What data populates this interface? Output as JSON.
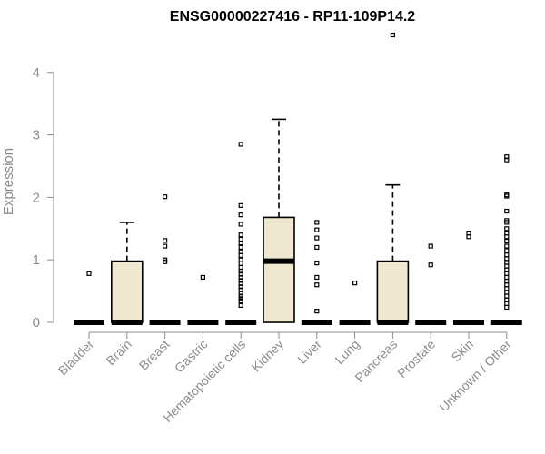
{
  "chart_data": {
    "type": "box",
    "title": "ENSG00000227416 - RP11-109P14.2",
    "ylabel": "Expression",
    "xlabel": "",
    "ylim": [
      0,
      4.6
    ],
    "yticks": [
      0,
      1,
      2,
      3,
      4
    ],
    "grid": false,
    "categories": [
      "Bladder",
      "Brain",
      "Breast",
      "Gastric",
      "Hematopoietic cells",
      "Kidney",
      "Liver",
      "Lung",
      "Pancreas",
      "Prostate",
      "Skin",
      "Unknown / Other"
    ],
    "boxes": [
      {
        "category": "Bladder",
        "q1": 0,
        "median": 0,
        "q3": 0,
        "whisker_low": 0,
        "whisker_high": 0,
        "outliers": [
          0.78
        ]
      },
      {
        "category": "Brain",
        "q1": 0,
        "median": 0,
        "q3": 0.98,
        "whisker_low": 0,
        "whisker_high": 1.6,
        "outliers": []
      },
      {
        "category": "Breast",
        "q1": 0,
        "median": 0,
        "q3": 0,
        "whisker_low": 0,
        "whisker_high": 0,
        "outliers": [
          2.01,
          1.31,
          1.22,
          1.0,
          0.97
        ]
      },
      {
        "category": "Gastric",
        "q1": 0,
        "median": 0,
        "q3": 0,
        "whisker_low": 0,
        "whisker_high": 0,
        "outliers": [
          0.72
        ]
      },
      {
        "category": "Hematopoietic cells",
        "q1": 0,
        "median": 0,
        "q3": 0,
        "whisker_low": 0,
        "whisker_high": 0,
        "outliers": [
          2.85,
          1.87,
          1.72,
          1.57,
          1.4,
          1.33,
          1.27,
          1.2,
          1.13,
          1.07,
          1.0,
          0.94,
          0.88,
          0.82,
          0.77,
          0.72,
          0.67,
          0.62,
          0.57,
          0.52,
          0.47,
          0.42,
          0.38,
          0.34,
          0.27
        ]
      },
      {
        "category": "Kidney",
        "q1": 0,
        "median": 0.98,
        "q3": 1.68,
        "whisker_low": 0,
        "whisker_high": 3.25,
        "outliers": []
      },
      {
        "category": "Liver",
        "q1": 0,
        "median": 0,
        "q3": 0,
        "whisker_low": 0,
        "whisker_high": 0,
        "outliers": [
          1.6,
          1.48,
          1.35,
          1.2,
          0.95,
          0.72,
          0.6,
          0.18
        ]
      },
      {
        "category": "Lung",
        "q1": 0,
        "median": 0,
        "q3": 0,
        "whisker_low": 0,
        "whisker_high": 0,
        "outliers": [
          0.63
        ]
      },
      {
        "category": "Pancreas",
        "q1": 0,
        "median": 0,
        "q3": 0.98,
        "whisker_low": 0,
        "whisker_high": 2.2,
        "outliers": [
          4.6
        ]
      },
      {
        "category": "Prostate",
        "q1": 0,
        "median": 0,
        "q3": 0,
        "whisker_low": 0,
        "whisker_high": 0,
        "outliers": [
          1.22,
          0.92
        ]
      },
      {
        "category": "Skin",
        "q1": 0,
        "median": 0,
        "q3": 0,
        "whisker_low": 0,
        "whisker_high": 0,
        "outliers": [
          1.43,
          1.37
        ]
      },
      {
        "category": "Unknown / Other",
        "q1": 0,
        "median": 0,
        "q3": 0,
        "whisker_low": 0,
        "whisker_high": 0,
        "outliers": [
          2.65,
          2.6,
          2.04,
          2.02,
          1.78,
          1.63,
          1.6,
          1.5,
          1.43,
          1.37,
          1.3,
          1.22,
          1.15,
          1.08,
          1.02,
          0.96,
          0.9,
          0.84,
          0.78,
          0.72,
          0.66,
          0.6,
          0.54,
          0.48,
          0.42,
          0.36,
          0.3,
          0.24
        ]
      }
    ],
    "colors": {
      "box_fill": "#efe8cf",
      "box_stroke": "#000000",
      "axis": "#8c8c8c"
    }
  }
}
